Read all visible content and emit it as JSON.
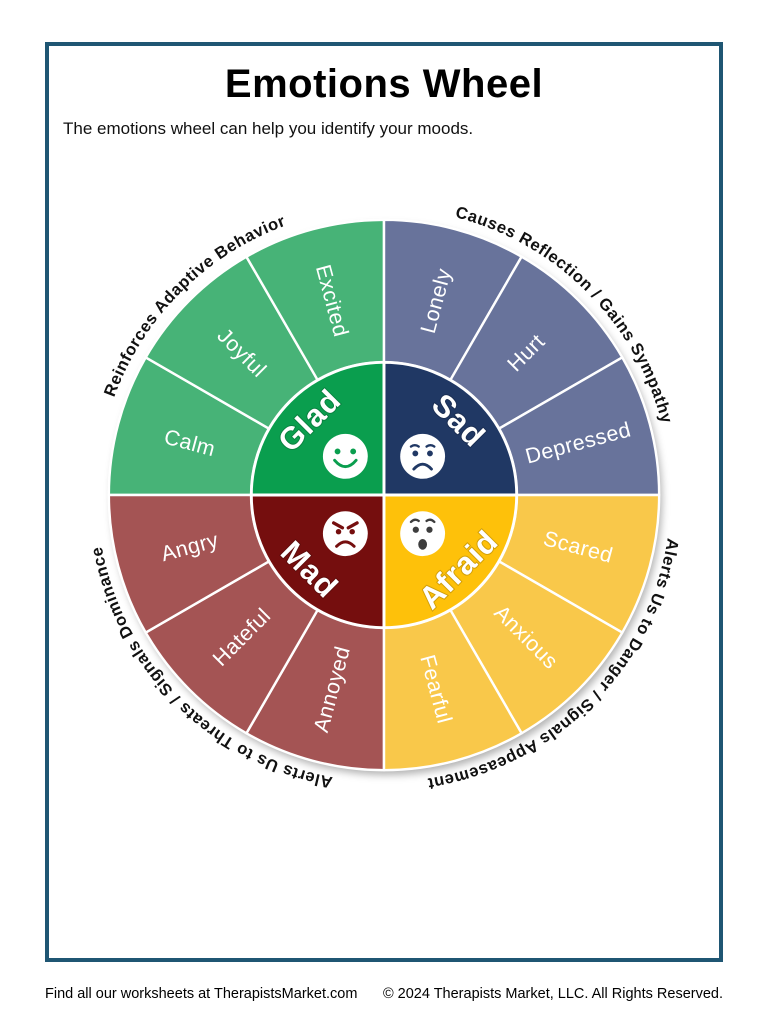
{
  "page": {
    "title": "Emotions Wheel",
    "subtitle": "The emotions wheel can help you identify your moods.",
    "border_color": "#1f5673",
    "footer_left": "Find all our worksheets at TherapistsMarket.com",
    "footer_right": "© 2024 Therapists Market, LLC.  All Rights Reserved."
  },
  "wheel": {
    "label_color": "#ffffff",
    "caption_color": "#111111",
    "divider_color": "#ffffff",
    "quadrants": [
      {
        "name": "Glad",
        "face_icon": "smiling-face-icon",
        "face": "happy",
        "phi0": 180,
        "inner_color": "#0a9e4e",
        "outer_color": "#47b377",
        "face_feature_color": "#0a9e4e",
        "emotions": [
          "Calm",
          "Joyful",
          "Excited"
        ],
        "arc_caption": "Reinforces Adaptive Behavior"
      },
      {
        "name": "Sad",
        "face_icon": "sad-face-icon",
        "face": "sad",
        "phi0": 270,
        "inner_color": "#203864",
        "outer_color": "#68739b",
        "face_feature_color": "#203864",
        "emotions": [
          "Lonely",
          "Hurt",
          "Depressed"
        ],
        "arc_caption": "Causes Reflection / Gains Sympathy"
      },
      {
        "name": "Mad",
        "face_icon": "angry-face-icon",
        "face": "angry",
        "phi0": 90,
        "inner_color": "#750e0e",
        "outer_color": "#a45454",
        "face_feature_color": "#750e0e",
        "emotions": [
          "Annoyed",
          "Hateful",
          "Angry"
        ],
        "arc_caption": "Alerts Us to Threats / Signals Dominance"
      },
      {
        "name": "Afraid",
        "face_icon": "fearful-face-icon",
        "face": "fearful",
        "phi0": 0,
        "inner_color": "#fec10a",
        "outer_color": "#f9c84a",
        "face_feature_color": "#3d3d3d",
        "emotions": [
          "Scared",
          "Anxious",
          "Fearful"
        ],
        "arc_caption": "Alerts Us to Danger / Signals Appeasement"
      }
    ]
  }
}
